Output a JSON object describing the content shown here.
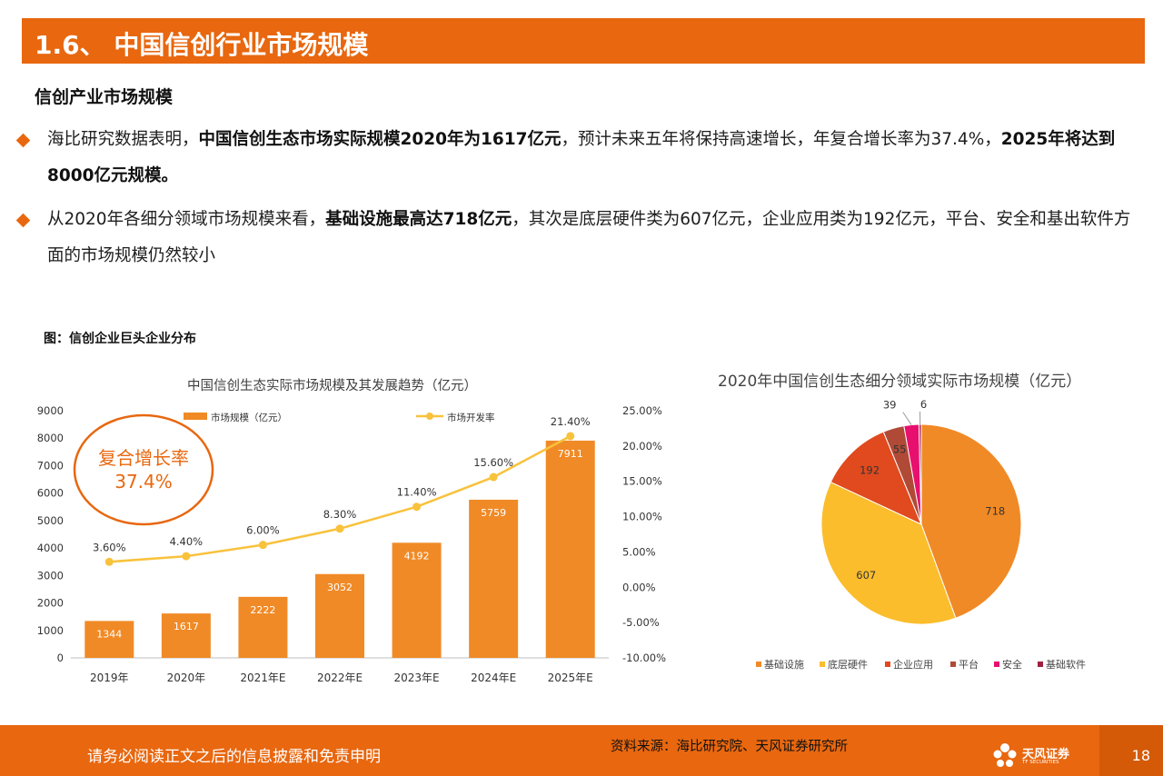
{
  "header": {
    "title": "1.6、 中国信创行业市场规模",
    "section": "信创产业市场规模"
  },
  "bullets": [
    {
      "parts": [
        {
          "t": "海比研究数据表明，",
          "b": false
        },
        {
          "t": "中国信创生态市场实际规模2020年为1617亿元",
          "b": true
        },
        {
          "t": "，预计未来五年将保持高速增长，年复合增长率为37.4%，",
          "b": false
        },
        {
          "t": "2025年将达到8000亿元规模。",
          "b": true
        }
      ]
    },
    {
      "parts": [
        {
          "t": "从2020年各细分领域市场规模来看，",
          "b": false
        },
        {
          "t": "基础设施最高达718亿元",
          "b": true
        },
        {
          "t": "，其次是底层硬件类为607亿元，企业应用类为192亿元，平台、安全和基出软件方面的市场规模仍然较小",
          "b": false
        }
      ]
    }
  ],
  "figure_label": "图：信创企业巨头企业分布",
  "cagr_callout": {
    "line1": "复合增长率",
    "line2": "37.4%"
  },
  "chart_data": [
    {
      "type": "bar",
      "title": "中国信创生态实际市场规模及其发展趋势（亿元）",
      "categories": [
        "2019年",
        "2020年",
        "2021年E",
        "2022年E",
        "2023年E",
        "2024年E",
        "2025年E"
      ],
      "series": [
        {
          "name": "市场规模（亿元）",
          "type": "bar",
          "axis": "left",
          "values": [
            1344,
            1617,
            2222,
            3052,
            4192,
            5759,
            7911
          ]
        },
        {
          "name": "市场开发率",
          "type": "line",
          "axis": "right",
          "values": [
            3.6,
            4.4,
            6.0,
            8.3,
            11.4,
            15.6,
            21.4
          ],
          "labels": [
            "3.60%",
            "4.40%",
            "6.00%",
            "8.30%",
            "11.40%",
            "15.60%",
            "21.40%"
          ]
        }
      ],
      "ylim": [
        0,
        9000
      ],
      "yticks": [
        "9000",
        "8000",
        "7000",
        "6000",
        "5000",
        "4000",
        "3000",
        "2000",
        "1000",
        "0"
      ],
      "y2lim": [
        -10,
        25
      ],
      "y2ticks": [
        "25.00%",
        "20.00%",
        "15.00%",
        "10.00%",
        "5.00%",
        "0.00%",
        "-5.00%",
        "-10.00%"
      ],
      "legend_position": "top",
      "colors": {
        "bar": "#f08a26",
        "line": "#f8c23c"
      }
    },
    {
      "type": "pie",
      "title": "2020年中国信创生态细分领域实际市场规模（亿元）",
      "slices": [
        {
          "label": "基础设施",
          "value": 718,
          "color": "#f08a26"
        },
        {
          "label": "底层硬件",
          "value": 607,
          "color": "#fbbd2c"
        },
        {
          "label": "企业应用",
          "value": 192,
          "color": "#e04a1e"
        },
        {
          "label": "平台",
          "value": 55,
          "color": "#b04a36"
        },
        {
          "label": "安全",
          "value": 39,
          "color": "#e8106e"
        },
        {
          "label": "基础软件",
          "value": 6,
          "color": "#a02040"
        }
      ],
      "legend_position": "bottom"
    }
  ],
  "footer": {
    "disclaimer": "请务必阅读正文之后的信息披露和免责申明",
    "source": "资料来源：海比研究院、天风证券研究所",
    "logo_name": "天风证券",
    "logo_sub": "TF SECURITIES",
    "page": "18"
  }
}
